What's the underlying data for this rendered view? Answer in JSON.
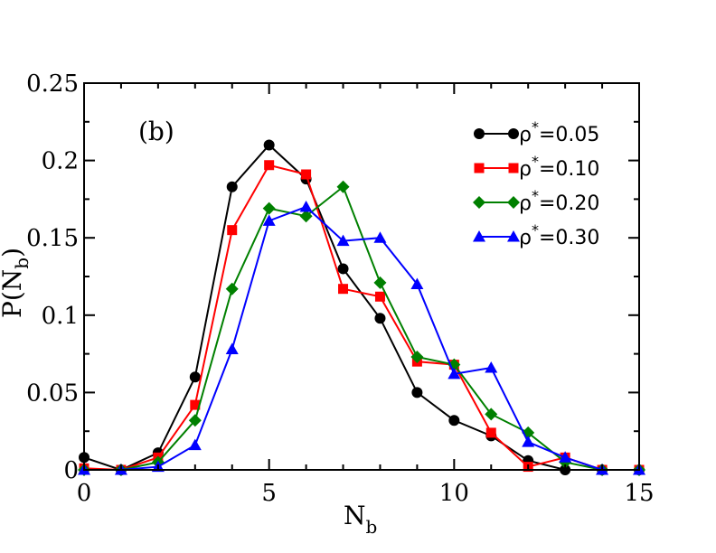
{
  "chart_data": {
    "type": "line",
    "panel_label": "(b)",
    "xlabel": "N",
    "xlabel_sub": "b",
    "ylabel": "P(N",
    "ylabel_sub": "b",
    "ylabel_close": ")",
    "xlim": [
      0,
      15
    ],
    "ylim": [
      0,
      0.25
    ],
    "xticks": [
      0,
      5,
      10,
      15
    ],
    "xtick_labels": [
      "0",
      "5",
      "10",
      "15"
    ],
    "yticks": [
      0,
      0.05,
      0.1,
      0.15,
      0.2,
      0.25
    ],
    "ytick_labels": [
      "0",
      "0.05",
      "0.1",
      "0.15",
      "0.2",
      "0.25"
    ],
    "legend_position": "top-right",
    "series": [
      {
        "name_prefix": "ρ",
        "name_sup": "*",
        "name_value": "=0.05",
        "color": "#000000",
        "marker": "circle",
        "x": [
          0,
          1,
          2,
          3,
          4,
          5,
          6,
          7,
          8,
          9,
          10,
          11,
          12,
          13,
          14,
          15
        ],
        "values": [
          0.008,
          0.0,
          0.011,
          0.06,
          0.183,
          0.21,
          0.188,
          0.13,
          0.098,
          0.05,
          0.032,
          0.022,
          0.006,
          0.0,
          0.0,
          0.0
        ]
      },
      {
        "name_prefix": "ρ",
        "name_sup": "*",
        "name_value": "=0.10",
        "color": "#ff0000",
        "marker": "square",
        "x": [
          0,
          1,
          2,
          3,
          4,
          5,
          6,
          7,
          8,
          9,
          10,
          11,
          12,
          13,
          14,
          15
        ],
        "values": [
          0.001,
          0.0,
          0.008,
          0.042,
          0.155,
          0.197,
          0.191,
          0.117,
          0.112,
          0.07,
          0.068,
          0.024,
          0.002,
          0.008,
          0.0,
          0.0
        ]
      },
      {
        "name_prefix": "ρ",
        "name_sup": "*",
        "name_value": "=0.20",
        "color": "#008000",
        "marker": "diamond",
        "x": [
          0,
          1,
          2,
          3,
          4,
          5,
          6,
          7,
          8,
          9,
          10,
          11,
          12,
          13,
          14,
          15
        ],
        "values": [
          0.0,
          0.0,
          0.005,
          0.032,
          0.117,
          0.169,
          0.164,
          0.183,
          0.121,
          0.073,
          0.068,
          0.036,
          0.024,
          0.005,
          0.0,
          0.0
        ]
      },
      {
        "name_prefix": "ρ",
        "name_sup": "*",
        "name_value": "=0.30",
        "color": "#0000ff",
        "marker": "triangle",
        "x": [
          0,
          1,
          2,
          3,
          4,
          5,
          6,
          7,
          8,
          9,
          10,
          11,
          12,
          13,
          14,
          15
        ],
        "values": [
          0.0,
          0.0,
          0.002,
          0.016,
          0.078,
          0.161,
          0.17,
          0.148,
          0.15,
          0.12,
          0.062,
          0.066,
          0.018,
          0.008,
          0.0,
          0.0
        ]
      }
    ]
  }
}
